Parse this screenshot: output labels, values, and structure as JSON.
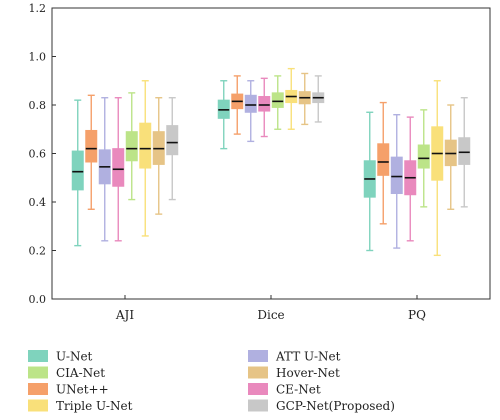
{
  "chart_data": {
    "type": "box",
    "categories": [
      "AJI",
      "Dice",
      "PQ"
    ],
    "ylim": [
      0.0,
      1.2
    ],
    "yticks": [
      "0.0",
      "0.2",
      "0.4",
      "0.6",
      "0.8",
      "1.0",
      "1.2"
    ],
    "grid": false,
    "legend_position": "bottom",
    "series": [
      {
        "name": "U-Net",
        "color": "#7fd3bd",
        "boxes": [
          {
            "min": 0.22,
            "q1": 0.45,
            "median": 0.525,
            "q3": 0.61,
            "max": 0.82
          },
          {
            "min": 0.62,
            "q1": 0.745,
            "median": 0.78,
            "q3": 0.82,
            "max": 0.9
          },
          {
            "min": 0.2,
            "q1": 0.42,
            "median": 0.495,
            "q3": 0.57,
            "max": 0.77
          }
        ]
      },
      {
        "name": "UNet++",
        "color": "#f5a06a",
        "boxes": [
          {
            "min": 0.37,
            "q1": 0.565,
            "median": 0.62,
            "q3": 0.695,
            "max": 0.84
          },
          {
            "min": 0.68,
            "q1": 0.785,
            "median": 0.815,
            "q3": 0.845,
            "max": 0.92
          },
          {
            "min": 0.31,
            "q1": 0.51,
            "median": 0.565,
            "q3": 0.64,
            "max": 0.81
          }
        ]
      },
      {
        "name": "ATT U-Net",
        "color": "#b0b0e0",
        "boxes": [
          {
            "min": 0.24,
            "q1": 0.475,
            "median": 0.545,
            "q3": 0.615,
            "max": 0.83
          },
          {
            "min": 0.65,
            "q1": 0.77,
            "median": 0.8,
            "q3": 0.84,
            "max": 0.9
          },
          {
            "min": 0.21,
            "q1": 0.435,
            "median": 0.505,
            "q3": 0.585,
            "max": 0.76
          }
        ]
      },
      {
        "name": "CE-Net",
        "color": "#e989bd",
        "boxes": [
          {
            "min": 0.24,
            "q1": 0.465,
            "median": 0.535,
            "q3": 0.62,
            "max": 0.83
          },
          {
            "min": 0.67,
            "q1": 0.775,
            "median": 0.8,
            "q3": 0.835,
            "max": 0.91
          },
          {
            "min": 0.24,
            "q1": 0.43,
            "median": 0.5,
            "q3": 0.57,
            "max": 0.75
          }
        ]
      },
      {
        "name": "CIA-Net",
        "color": "#bce488",
        "boxes": [
          {
            "min": 0.41,
            "q1": 0.57,
            "median": 0.62,
            "q3": 0.69,
            "max": 0.85
          },
          {
            "min": 0.7,
            "q1": 0.79,
            "median": 0.815,
            "q3": 0.85,
            "max": 0.92
          },
          {
            "min": 0.38,
            "q1": 0.54,
            "median": 0.58,
            "q3": 0.635,
            "max": 0.78
          }
        ]
      },
      {
        "name": "Triple U-Net",
        "color": "#f9e07a",
        "boxes": [
          {
            "min": 0.26,
            "q1": 0.54,
            "median": 0.62,
            "q3": 0.725,
            "max": 0.9
          },
          {
            "min": 0.7,
            "q1": 0.81,
            "median": 0.835,
            "q3": 0.86,
            "max": 0.95
          },
          {
            "min": 0.18,
            "q1": 0.49,
            "median": 0.6,
            "q3": 0.71,
            "max": 0.9
          }
        ]
      },
      {
        "name": "Hover-Net",
        "color": "#e6c486",
        "boxes": [
          {
            "min": 0.35,
            "q1": 0.555,
            "median": 0.62,
            "q3": 0.69,
            "max": 0.83
          },
          {
            "min": 0.72,
            "q1": 0.805,
            "median": 0.83,
            "q3": 0.855,
            "max": 0.93
          },
          {
            "min": 0.37,
            "q1": 0.55,
            "median": 0.6,
            "q3": 0.655,
            "max": 0.8
          }
        ]
      },
      {
        "name": "GCP-Net(Proposed)",
        "color": "#c8c8c8",
        "boxes": [
          {
            "min": 0.41,
            "q1": 0.595,
            "median": 0.645,
            "q3": 0.715,
            "max": 0.83
          },
          {
            "min": 0.73,
            "q1": 0.81,
            "median": 0.83,
            "q3": 0.85,
            "max": 0.92
          },
          {
            "min": 0.38,
            "q1": 0.555,
            "median": 0.605,
            "q3": 0.665,
            "max": 0.83
          }
        ]
      }
    ],
    "legend_order": [
      "U-Net",
      "ATT U-Net",
      "CIA-Net",
      "Hover-Net",
      "UNet++",
      "CE-Net",
      "Triple U-Net",
      "GCP-Net(Proposed)"
    ]
  }
}
